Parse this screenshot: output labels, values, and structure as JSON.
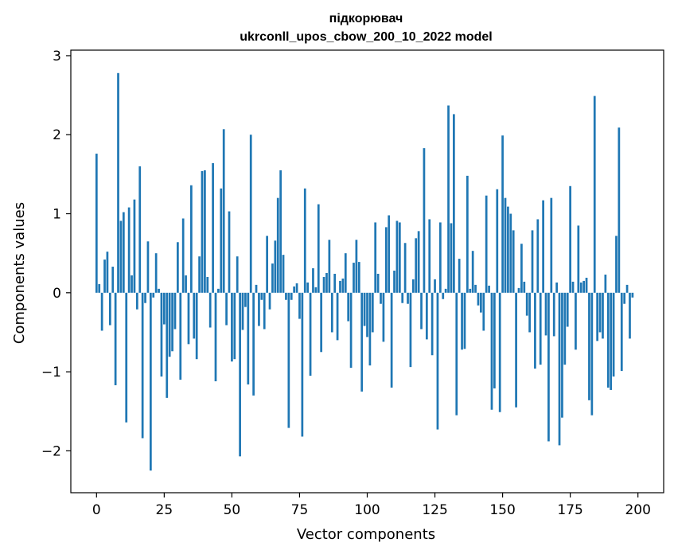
{
  "chart_data": {
    "type": "bar",
    "title": "підкорювач",
    "subtitle": "ukrconll_upos_cbow_200_10_2022 model",
    "xlabel": "Vector components",
    "ylabel": "Components values",
    "xlim": [
      -9.5,
      209.5
    ],
    "ylim": [
      -2.53,
      3.07
    ],
    "xticks": [
      0,
      25,
      50,
      75,
      100,
      125,
      150,
      175,
      200
    ],
    "xtick_labels": [
      "0",
      "25",
      "50",
      "75",
      "100",
      "125",
      "150",
      "175",
      "200"
    ],
    "yticks": [
      -2,
      -1,
      0,
      1,
      2,
      3
    ],
    "ytick_labels": [
      "−2",
      "−1",
      "0",
      "1",
      "2",
      "3"
    ],
    "bar_color": "#1f77b4",
    "values": [
      1.76,
      0.11,
      -0.48,
      0.42,
      0.52,
      -0.41,
      0.33,
      -1.17,
      2.78,
      0.91,
      1.02,
      -1.64,
      1.08,
      0.22,
      1.18,
      -0.21,
      1.6,
      -1.84,
      -0.13,
      0.65,
      -2.25,
      -0.06,
      0.5,
      0.05,
      -1.06,
      -0.4,
      -1.33,
      -0.81,
      -0.74,
      -0.46,
      0.64,
      -1.1,
      0.94,
      0.22,
      -0.65,
      1.36,
      -0.58,
      -0.84,
      0.46,
      1.54,
      1.55,
      0.2,
      -0.44,
      1.64,
      -1.12,
      0.05,
      1.32,
      2.07,
      -0.41,
      1.03,
      -0.87,
      -0.84,
      0.46,
      -2.07,
      -0.47,
      -0.18,
      -1.16,
      2.0,
      -1.3,
      0.1,
      -0.42,
      -0.09,
      -0.46,
      0.72,
      -0.21,
      0.37,
      0.66,
      1.2,
      1.55,
      0.48,
      -0.09,
      -1.71,
      -0.09,
      0.08,
      0.12,
      -0.33,
      -1.82,
      1.32,
      0.13,
      -1.05,
      0.31,
      0.07,
      1.12,
      -0.75,
      0.2,
      0.25,
      0.67,
      -0.5,
      0.24,
      -0.6,
      0.15,
      0.18,
      0.5,
      -0.36,
      -0.95,
      0.38,
      0.67,
      0.39,
      -1.25,
      -0.42,
      -0.56,
      -0.92,
      -0.5,
      0.89,
      0.24,
      -0.14,
      -0.62,
      0.83,
      0.98,
      -1.2,
      0.28,
      0.91,
      0.89,
      -0.13,
      0.63,
      -0.14,
      -0.94,
      0.17,
      0.69,
      0.78,
      -0.46,
      1.83,
      -0.59,
      0.93,
      -0.79,
      0.17,
      -1.73,
      0.89,
      -0.08,
      0.05,
      2.37,
      0.88,
      2.26,
      -1.55,
      0.43,
      -0.72,
      -0.71,
      1.48,
      0.05,
      0.53,
      0.1,
      -0.16,
      -0.25,
      -0.48,
      1.23,
      0.09,
      -1.48,
      -1.21,
      1.31,
      -1.51,
      1.99,
      1.2,
      1.09,
      1.0,
      0.79,
      -1.45,
      0.06,
      0.62,
      0.14,
      -0.29,
      -0.5,
      0.79,
      -0.96,
      0.93,
      -0.91,
      1.17,
      -0.54,
      -1.88,
      1.2,
      -0.55,
      0.13,
      -1.93,
      -1.58,
      -0.91,
      -0.43,
      1.35,
      0.14,
      -0.72,
      0.85,
      0.13,
      0.15,
      0.19,
      -1.36,
      -1.55,
      2.49,
      -0.61,
      -0.5,
      -0.58,
      0.23,
      -1.2,
      -1.23,
      -1.06,
      0.72,
      2.09,
      -0.99,
      -0.14,
      0.1,
      -0.58,
      -0.06
    ]
  }
}
